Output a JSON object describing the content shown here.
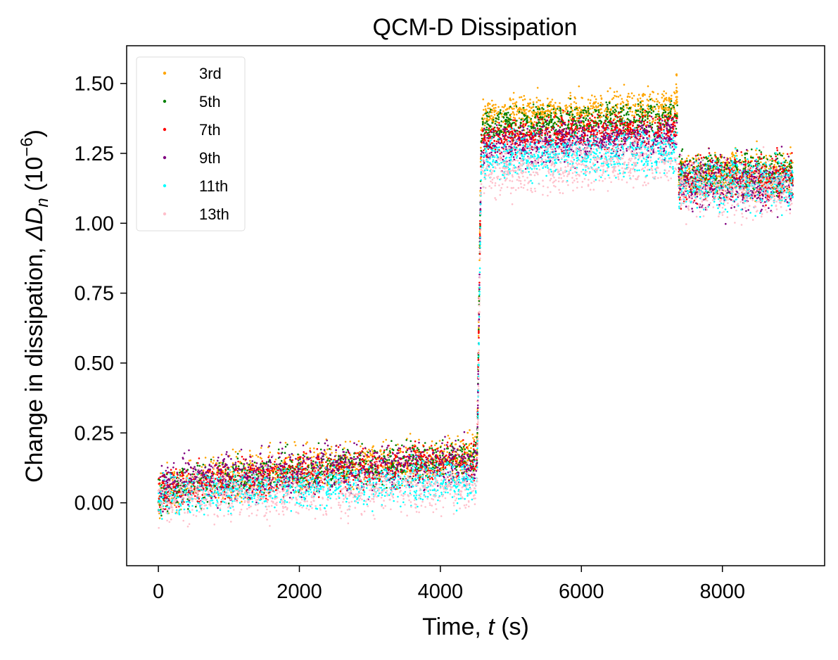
{
  "chart_data": {
    "type": "scatter",
    "title": "QCM-D Dissipation",
    "xlabel": {
      "prefix": "Time, ",
      "var": "t",
      "suffix": " (s)"
    },
    "ylabel": {
      "prefix": "Change in dissipation, ",
      "var": "ΔD",
      "sub": "n",
      "unit_open": " (10",
      "unit_exp": "−6",
      "unit_close": ")"
    },
    "xlim": [
      -450,
      9450
    ],
    "ylim": [
      -0.225,
      1.635
    ],
    "xticks": [
      0,
      2000,
      4000,
      6000,
      8000
    ],
    "xtick_labels": [
      "0",
      "2000",
      "4000",
      "6000",
      "8000"
    ],
    "yticks": [
      0.0,
      0.25,
      0.5,
      0.75,
      1.0,
      1.25,
      1.5
    ],
    "ytick_labels": [
      "0.00",
      "0.25",
      "0.50",
      "0.75",
      "1.00",
      "1.25",
      "1.50"
    ],
    "grid": false,
    "legend_position": "top-left",
    "series": [
      {
        "name": "3rd",
        "color": "#ffa500",
        "segments": [
          {
            "x_start": 0,
            "x_end": 4520,
            "y_start": 0.02,
            "y_end": 0.17,
            "noise": 0.04
          },
          {
            "x_start": 4580,
            "x_end": 7360,
            "y_start": 1.37,
            "y_end": 1.42,
            "noise": 0.03
          },
          {
            "x_start": 7380,
            "x_end": 9000,
            "y_start": 1.18,
            "y_end": 1.18,
            "noise": 0.04
          }
        ]
      },
      {
        "name": "5th",
        "color": "#008000",
        "segments": [
          {
            "x_start": 0,
            "x_end": 4520,
            "y_start": 0.02,
            "y_end": 0.16,
            "noise": 0.035
          },
          {
            "x_start": 4580,
            "x_end": 7360,
            "y_start": 1.33,
            "y_end": 1.38,
            "noise": 0.03
          },
          {
            "x_start": 7380,
            "x_end": 9000,
            "y_start": 1.18,
            "y_end": 1.18,
            "noise": 0.04
          }
        ]
      },
      {
        "name": "7th",
        "color": "#ff0000",
        "segments": [
          {
            "x_start": 0,
            "x_end": 4520,
            "y_start": 0.02,
            "y_end": 0.15,
            "noise": 0.035
          },
          {
            "x_start": 4580,
            "x_end": 7360,
            "y_start": 1.29,
            "y_end": 1.34,
            "noise": 0.03
          },
          {
            "x_start": 7380,
            "x_end": 9000,
            "y_start": 1.16,
            "y_end": 1.16,
            "noise": 0.04
          }
        ]
      },
      {
        "name": "9th",
        "color": "#800080",
        "segments": [
          {
            "x_start": 0,
            "x_end": 4520,
            "y_start": 0.05,
            "y_end": 0.14,
            "noise": 0.04
          },
          {
            "x_start": 4580,
            "x_end": 7360,
            "y_start": 1.26,
            "y_end": 1.31,
            "noise": 0.035
          },
          {
            "x_start": 7380,
            "x_end": 9000,
            "y_start": 1.14,
            "y_end": 1.14,
            "noise": 0.045
          }
        ]
      },
      {
        "name": "11th",
        "color": "#00ffff",
        "segments": [
          {
            "x_start": 0,
            "x_end": 4520,
            "y_start": 0.01,
            "y_end": 0.08,
            "noise": 0.035
          },
          {
            "x_start": 4580,
            "x_end": 7360,
            "y_start": 1.22,
            "y_end": 1.26,
            "noise": 0.04
          },
          {
            "x_start": 7380,
            "x_end": 9000,
            "y_start": 1.14,
            "y_end": 1.14,
            "noise": 0.045
          }
        ]
      },
      {
        "name": "13th",
        "color": "#ffc0cb",
        "segments": [
          {
            "x_start": 0,
            "x_end": 4520,
            "y_start": 0.0,
            "y_end": 0.06,
            "noise": 0.045
          },
          {
            "x_start": 4580,
            "x_end": 7360,
            "y_start": 1.19,
            "y_end": 1.23,
            "noise": 0.05
          },
          {
            "x_start": 7380,
            "x_end": 9000,
            "y_start": 1.12,
            "y_end": 1.12,
            "noise": 0.05
          }
        ]
      }
    ],
    "transition_x": [
      4520,
      4580
    ],
    "peak_before_drop": {
      "x": 7340,
      "y": 1.54
    }
  }
}
